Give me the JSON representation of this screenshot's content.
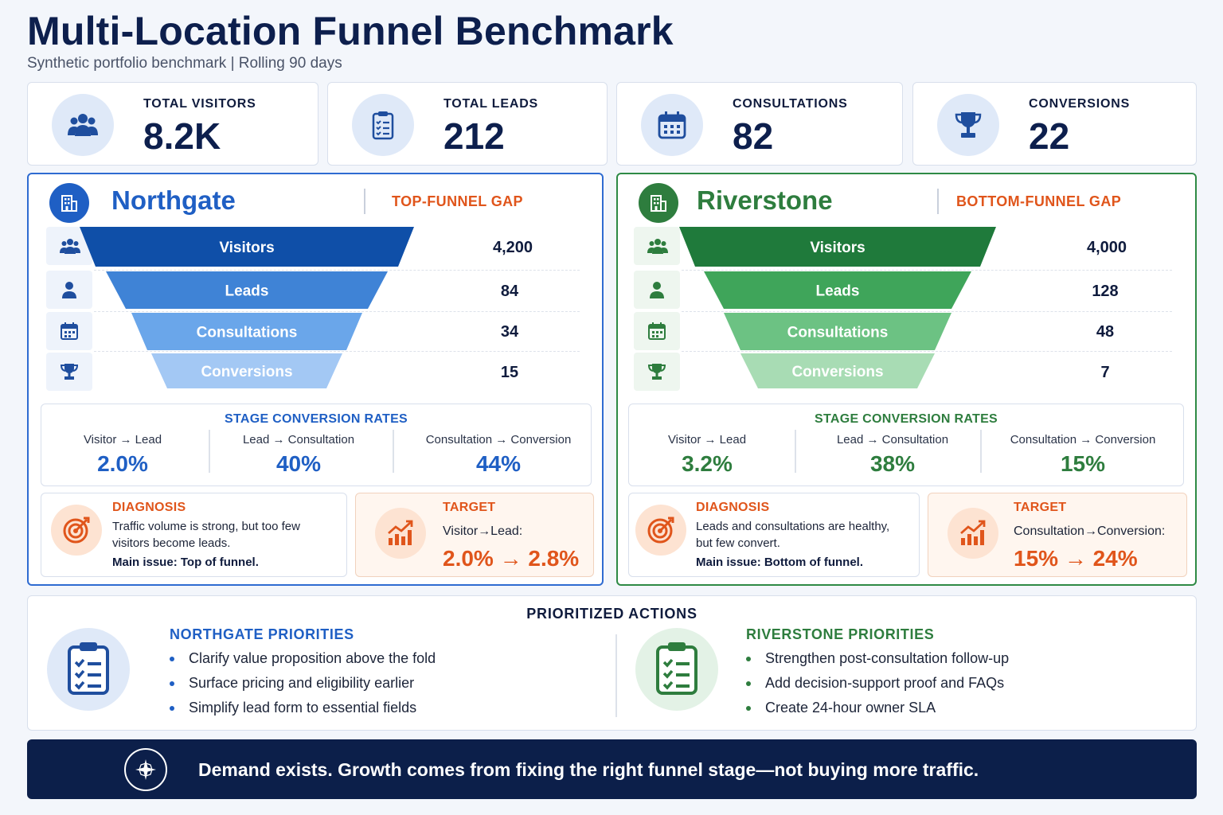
{
  "header": {
    "title": "Multi-Location Funnel Benchmark",
    "subtitle": "Synthetic portfolio benchmark | Rolling 90 days"
  },
  "kpis": [
    {
      "label": "TOTAL VISITORS",
      "value": "8.2K",
      "icon": "users-icon"
    },
    {
      "label": "TOTAL LEADS",
      "value": "212",
      "icon": "clipboard-icon"
    },
    {
      "label": "CONSULTATIONS",
      "value": "82",
      "icon": "calendar-icon"
    },
    {
      "label": "CONVERSIONS",
      "value": "22",
      "icon": "trophy-icon"
    }
  ],
  "locations": [
    {
      "name": "Northgate",
      "gap": "TOP-FUNNEL GAP",
      "accent": "#1f5fc4",
      "rates_title": "STAGE CONVERSION RATES",
      "rates": [
        {
          "label": "Visitor → Lead",
          "value": "2.0%"
        },
        {
          "label": "Lead → Consultation",
          "value": "40%"
        },
        {
          "label": "Consultation → Conversion",
          "value": "44%"
        }
      ],
      "diagnosis": {
        "title": "DIAGNOSIS",
        "line1": "Traffic volume is strong, but too few",
        "line2": "visitors become leads.",
        "main": "Main issue: Top of funnel."
      },
      "target": {
        "title": "TARGET",
        "label": "Visitor→Lead:",
        "value": "2.0% → 2.8%"
      }
    },
    {
      "name": "Riverstone",
      "gap": "BOTTOM-FUNNEL GAP",
      "accent": "#2e7d3e",
      "rates_title": "STAGE CONVERSION RATES",
      "rates": [
        {
          "label": "Visitor → Lead",
          "value": "3.2%"
        },
        {
          "label": "Lead → Consultation",
          "value": "38%"
        },
        {
          "label": "Consultation → Conversion",
          "value": "15%"
        }
      ],
      "diagnosis": {
        "title": "DIAGNOSIS",
        "line1": "Leads and consultations are healthy,",
        "line2": "but few convert.",
        "main": "Main issue: Bottom of funnel."
      },
      "target": {
        "title": "TARGET",
        "label": "Consultation→Conversion:",
        "value": "15% → 24%"
      }
    }
  ],
  "chart_data": [
    {
      "type": "bar",
      "title": "Northgate",
      "categories": [
        "Visitors",
        "Leads",
        "Consultations",
        "Conversions"
      ],
      "values": [
        4200,
        84,
        34,
        15
      ],
      "value_labels": [
        "4,200",
        "84",
        "34",
        "15"
      ],
      "colors": [
        "#0f4fa8",
        "#3f83d6",
        "#6aa6ea",
        "#a3c8f4"
      ]
    },
    {
      "type": "bar",
      "title": "Riverstone",
      "categories": [
        "Visitors",
        "Leads",
        "Consultations",
        "Conversions"
      ],
      "values": [
        4000,
        128,
        48,
        7
      ],
      "value_labels": [
        "4,000",
        "128",
        "48",
        "7"
      ],
      "colors": [
        "#1f7a3b",
        "#3fa55a",
        "#6cc283",
        "#a8dcb4"
      ]
    }
  ],
  "actions": {
    "title": "PRIORITIZED ACTIONS",
    "northgate": {
      "title": "NORTHGATE PRIORITIES",
      "items": [
        "Clarify value proposition above the fold",
        "Surface pricing and eligibility earlier",
        "Simplify lead form to essential fields"
      ]
    },
    "riverstone": {
      "title": "RIVERSTONE PRIORITIES",
      "items": [
        "Strengthen post-consultation follow-up",
        "Add decision-support proof and FAQs",
        "Create 24-hour owner SLA"
      ]
    }
  },
  "banner": {
    "text": "Demand exists. Growth comes from fixing the right funnel stage—not buying more traffic.",
    "icon": "compass-icon"
  }
}
